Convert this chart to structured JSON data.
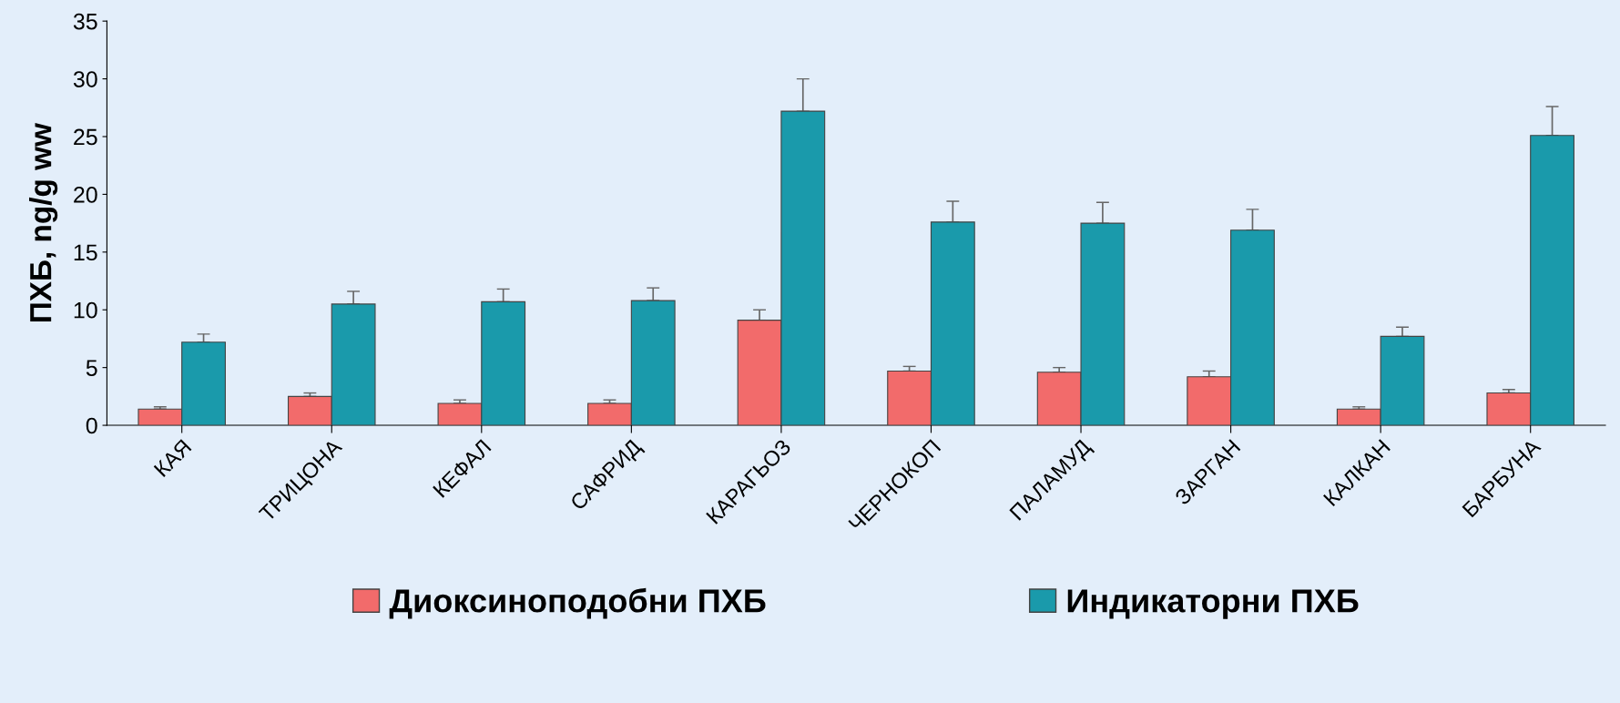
{
  "chart_data": {
    "type": "bar",
    "ylabel": "ПХБ, ng/g ww",
    "categories": [
      "КАЯ",
      "ТРИЦОНА",
      "КЕФАЛ",
      "САФРИД",
      "КАРАГЬОЗ",
      "ЧЕРНОКОП",
      "ПАЛАМУД",
      "ЗАРГАН",
      "КАЛКАН",
      "БАРБУНА"
    ],
    "series": [
      {
        "name": "Диоксиноподобни ПХБ",
        "color": "#f26b6b",
        "values": [
          1.4,
          2.5,
          1.9,
          1.9,
          9.1,
          4.7,
          4.6,
          4.2,
          1.4,
          2.8
        ],
        "errors": [
          [
            1.4,
            1.6
          ],
          [
            2.5,
            2.8
          ],
          [
            1.9,
            2.2
          ],
          [
            1.9,
            2.2
          ],
          [
            9.1,
            10.0
          ],
          [
            4.7,
            5.1
          ],
          [
            4.6,
            5.0
          ],
          [
            4.2,
            4.7
          ],
          [
            1.4,
            1.6
          ],
          [
            2.8,
            3.1
          ]
        ]
      },
      {
        "name": "Индикаторни ПХБ",
        "color": "#1a9aab",
        "values": [
          7.2,
          10.5,
          10.7,
          10.8,
          27.2,
          17.6,
          17.5,
          16.9,
          7.7,
          25.1
        ],
        "errors": [
          [
            7.2,
            7.9
          ],
          [
            10.5,
            11.6
          ],
          [
            10.7,
            11.8
          ],
          [
            10.8,
            11.9
          ],
          [
            27.2,
            30.0
          ],
          [
            17.6,
            19.4
          ],
          [
            17.5,
            19.3
          ],
          [
            16.9,
            18.7
          ],
          [
            7.7,
            8.5
          ],
          [
            25.1,
            27.6
          ]
        ]
      }
    ],
    "ylim": [
      0,
      35
    ],
    "yticks": [
      0,
      5,
      10,
      15,
      20,
      25,
      30,
      35
    ],
    "grid": false,
    "legend": "bottom"
  }
}
